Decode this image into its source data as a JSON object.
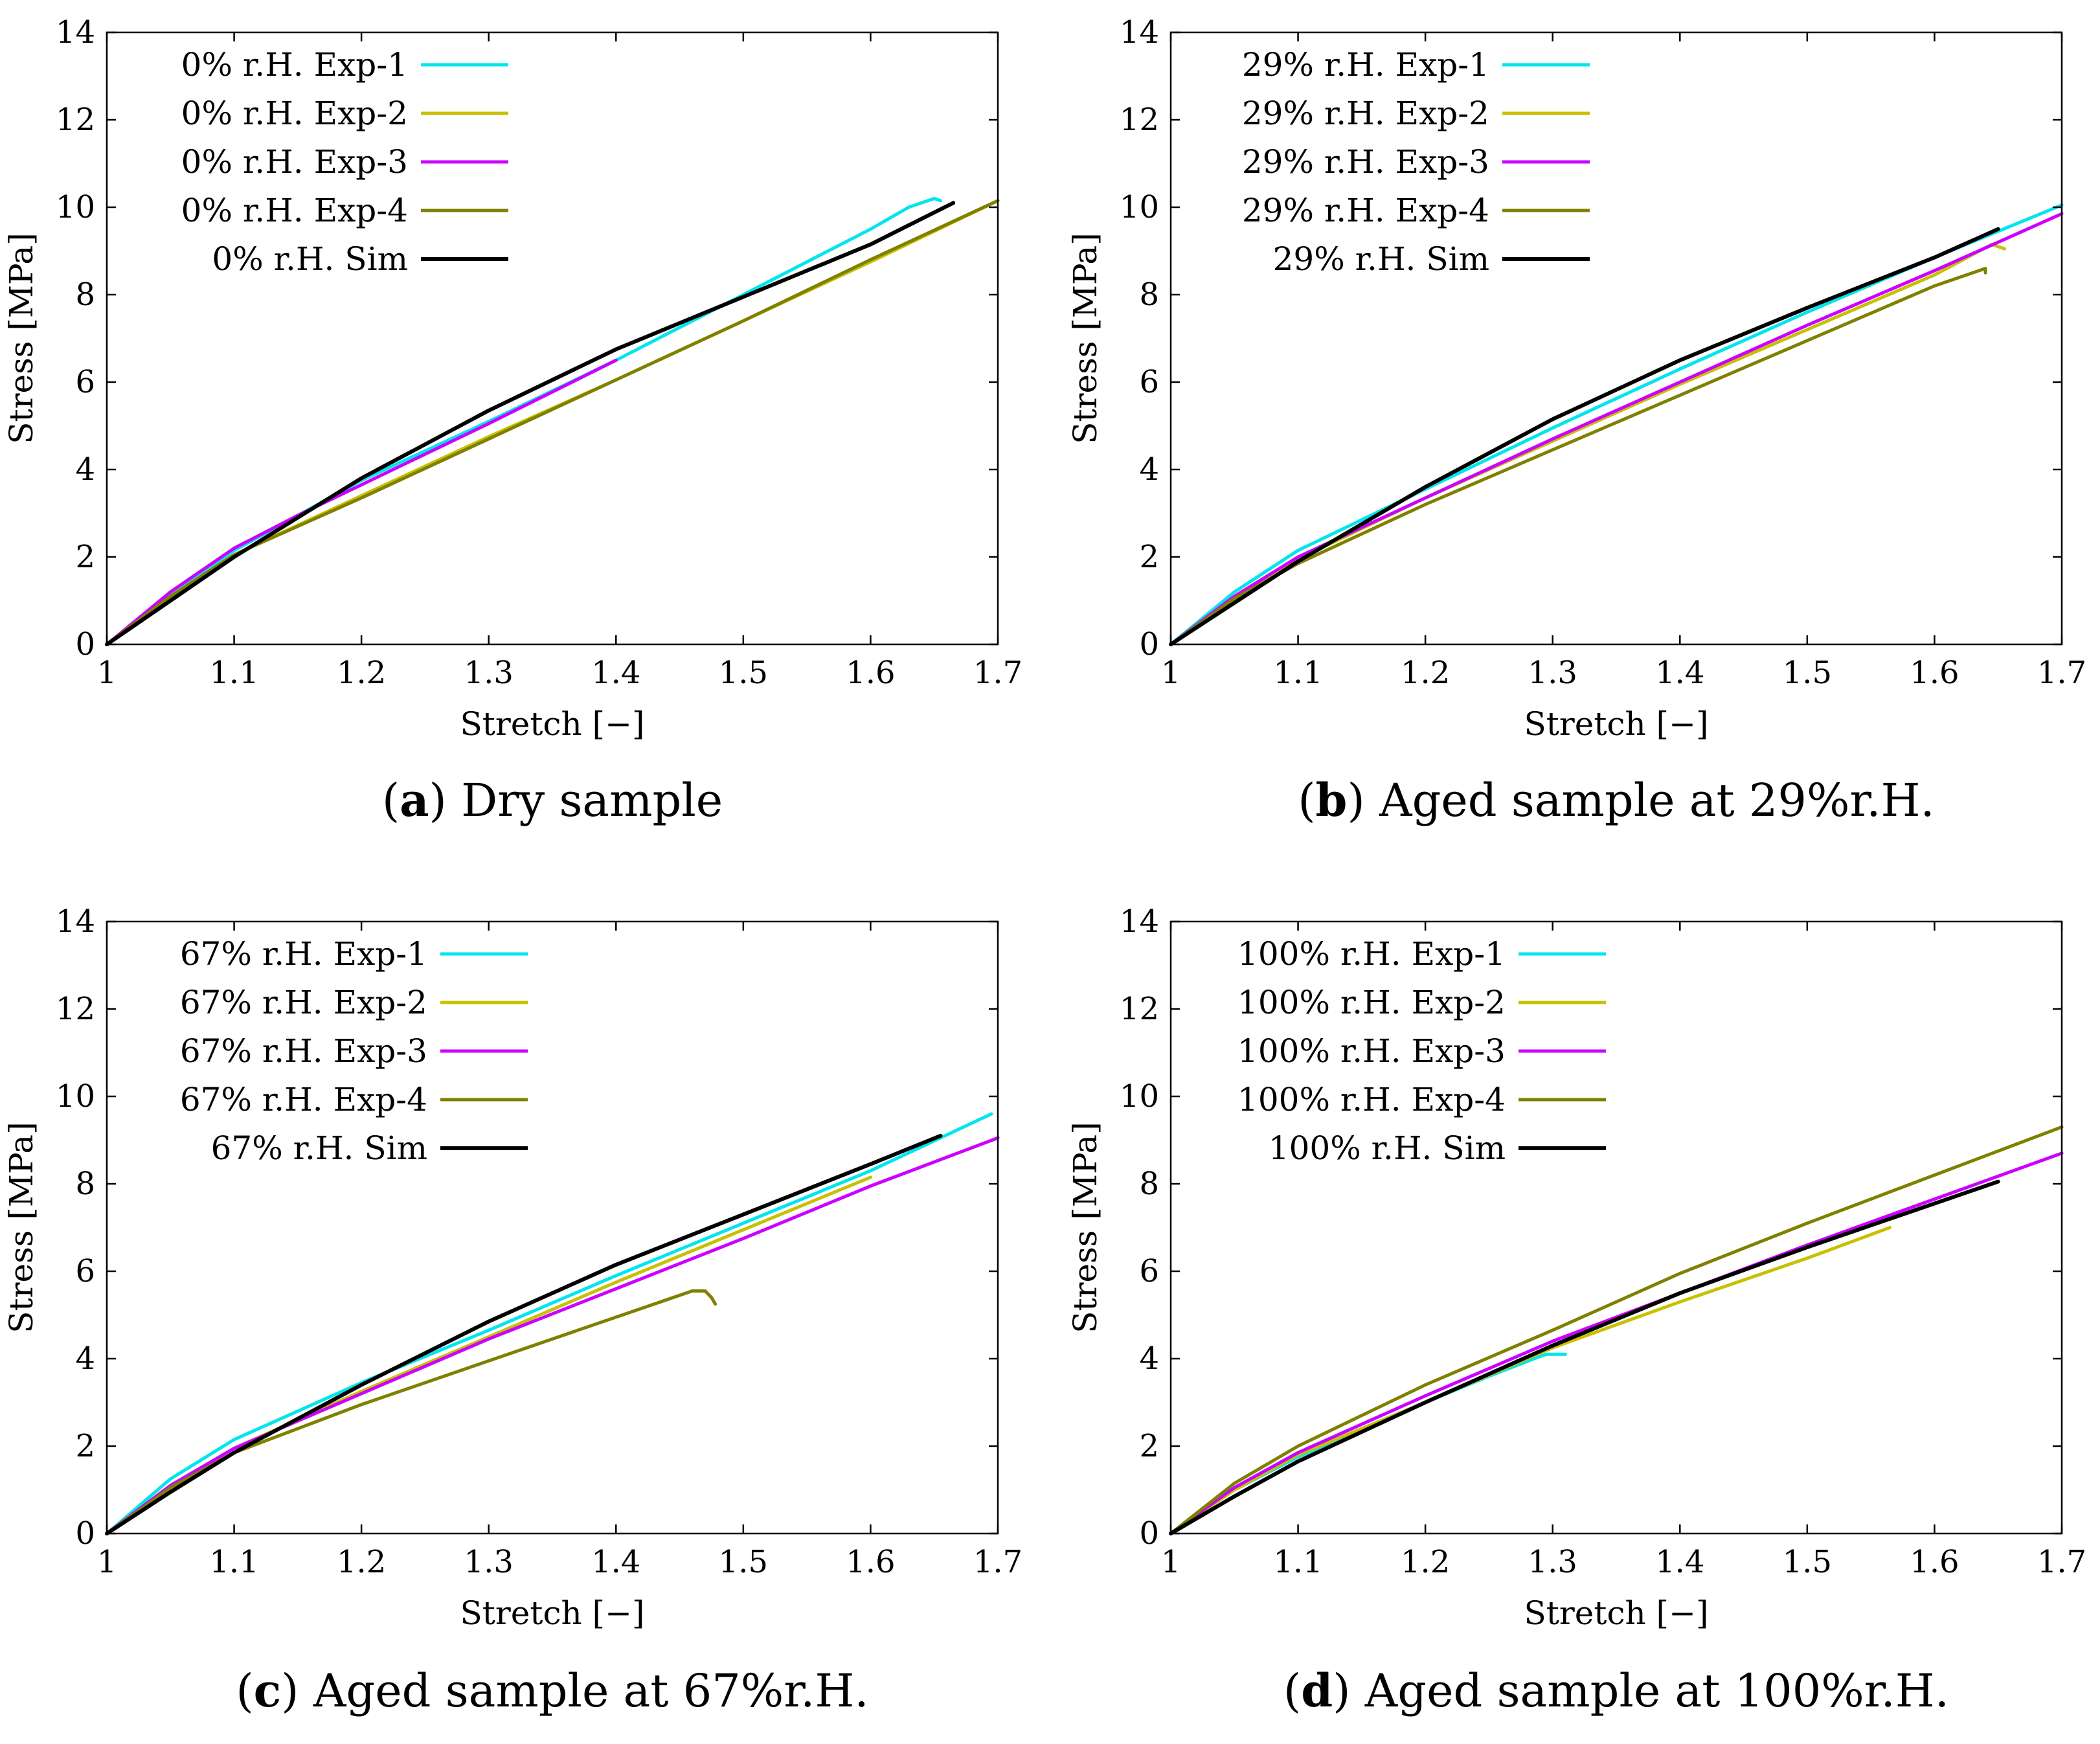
{
  "colors": {
    "exp1": "#00e5ee",
    "exp2": "#c8c000",
    "exp3": "#cc00ff",
    "exp4": "#808000",
    "sim": "#000000"
  },
  "chart_data": [
    {
      "type": "line",
      "caption_letter": "a",
      "caption_text": "Dry sample",
      "xlabel": "Stretch [−]",
      "ylabel": "Stress [MPa]",
      "xlim": [
        1,
        1.7
      ],
      "ylim": [
        0,
        14
      ],
      "xticks": [
        "1",
        "1.1",
        "1.2",
        "1.3",
        "1.4",
        "1.5",
        "1.6",
        "1.7"
      ],
      "yticks": [
        "0",
        "2",
        "4",
        "6",
        "8",
        "10",
        "12",
        "14"
      ],
      "legend_position": "top-left",
      "series": [
        {
          "name": "0% r.H. Exp-1",
          "color_key": "exp1",
          "x": [
            1,
            1.05,
            1.1,
            1.2,
            1.3,
            1.4,
            1.5,
            1.6,
            1.63,
            1.65,
            1.655
          ],
          "y": [
            0,
            1.15,
            2.15,
            3.75,
            5.1,
            6.5,
            8.0,
            9.5,
            10.0,
            10.2,
            10.15
          ]
        },
        {
          "name": "0% r.H. Exp-2",
          "color_key": "exp2",
          "x": [
            1,
            1.05,
            1.1,
            1.2,
            1.3,
            1.4,
            1.5,
            1.6,
            1.7
          ],
          "y": [
            0,
            1.1,
            2.05,
            3.4,
            4.75,
            6.05,
            7.4,
            8.75,
            10.15
          ]
        },
        {
          "name": "0% r.H. Exp-3",
          "color_key": "exp3",
          "x": [
            1,
            1.05,
            1.1,
            1.15,
            1.2,
            1.3,
            1.4
          ],
          "y": [
            0,
            1.2,
            2.2,
            2.95,
            3.65,
            5.05,
            6.5
          ]
        },
        {
          "name": "0% r.H. Exp-4",
          "color_key": "exp4",
          "x": [
            1,
            1.05,
            1.1,
            1.2,
            1.3,
            1.4,
            1.5,
            1.6,
            1.7
          ],
          "y": [
            0,
            1.1,
            2.05,
            3.35,
            4.7,
            6.05,
            7.4,
            8.8,
            10.15
          ]
        },
        {
          "name": "0% r.H. Sim",
          "color_key": "sim",
          "x": [
            1,
            1.05,
            1.1,
            1.2,
            1.3,
            1.4,
            1.5,
            1.6,
            1.665
          ],
          "y": [
            0,
            1.0,
            2.0,
            3.8,
            5.35,
            6.75,
            7.95,
            9.15,
            10.1
          ]
        }
      ]
    },
    {
      "type": "line",
      "caption_letter": "b",
      "caption_text": "Aged sample at 29%r.H.",
      "xlabel": "Stretch [−]",
      "ylabel": "Stress [MPa]",
      "xlim": [
        1,
        1.7
      ],
      "ylim": [
        0,
        14
      ],
      "xticks": [
        "1",
        "1.1",
        "1.2",
        "1.3",
        "1.4",
        "1.5",
        "1.6",
        "1.7"
      ],
      "yticks": [
        "0",
        "2",
        "4",
        "6",
        "8",
        "10",
        "12",
        "14"
      ],
      "legend_position": "top-left",
      "series": [
        {
          "name": "29% r.H. Exp-1",
          "color_key": "exp1",
          "x": [
            1,
            1.05,
            1.1,
            1.2,
            1.3,
            1.4,
            1.5,
            1.6,
            1.7
          ],
          "y": [
            0,
            1.2,
            2.15,
            3.55,
            4.95,
            6.3,
            7.6,
            8.85,
            10.05
          ]
        },
        {
          "name": "29% r.H. Exp-2",
          "color_key": "exp2",
          "x": [
            1,
            1.05,
            1.1,
            1.2,
            1.3,
            1.4,
            1.5,
            1.6,
            1.645,
            1.655
          ],
          "y": [
            0,
            1.05,
            1.95,
            3.35,
            4.65,
            5.95,
            7.2,
            8.45,
            9.15,
            9.05
          ]
        },
        {
          "name": "29% r.H. Exp-3",
          "color_key": "exp3",
          "x": [
            1,
            1.05,
            1.1,
            1.2,
            1.3,
            1.4,
            1.5,
            1.6,
            1.7
          ],
          "y": [
            0,
            1.1,
            2.0,
            3.35,
            4.7,
            6.0,
            7.3,
            8.55,
            9.85
          ]
        },
        {
          "name": "29% r.H. Exp-4",
          "color_key": "exp4",
          "x": [
            1,
            1.05,
            1.1,
            1.2,
            1.3,
            1.4,
            1.5,
            1.6,
            1.64,
            1.64
          ],
          "y": [
            0,
            1.05,
            1.85,
            3.2,
            4.45,
            5.7,
            6.95,
            8.2,
            8.6,
            8.5
          ]
        },
        {
          "name": "29% r.H. Sim",
          "color_key": "sim",
          "x": [
            1,
            1.05,
            1.1,
            1.2,
            1.3,
            1.4,
            1.5,
            1.6,
            1.65
          ],
          "y": [
            0,
            0.95,
            1.9,
            3.6,
            5.15,
            6.5,
            7.7,
            8.85,
            9.5
          ]
        }
      ]
    },
    {
      "type": "line",
      "caption_letter": "c",
      "caption_text": "Aged sample at 67%r.H.",
      "xlabel": "Stretch [−]",
      "ylabel": "Stress [MPa]",
      "xlim": [
        1,
        1.7
      ],
      "ylim": [
        0,
        14
      ],
      "xticks": [
        "1",
        "1.1",
        "1.2",
        "1.3",
        "1.4",
        "1.5",
        "1.6",
        "1.7"
      ],
      "yticks": [
        "0",
        "2",
        "4",
        "6",
        "8",
        "10",
        "12",
        "14"
      ],
      "legend_position": "top-left",
      "series": [
        {
          "name": "67% r.H. Exp-1",
          "color_key": "exp1",
          "x": [
            1,
            1.05,
            1.1,
            1.2,
            1.3,
            1.4,
            1.5,
            1.6,
            1.695
          ],
          "y": [
            0,
            1.25,
            2.15,
            3.45,
            4.65,
            5.9,
            7.1,
            8.3,
            9.6
          ]
        },
        {
          "name": "67% r.H. Exp-2",
          "color_key": "exp2",
          "x": [
            1,
            1.05,
            1.1,
            1.2,
            1.3,
            1.4,
            1.5,
            1.6
          ],
          "y": [
            0,
            1.1,
            1.95,
            3.25,
            4.5,
            5.75,
            6.95,
            8.15
          ]
        },
        {
          "name": "67% r.H. Exp-3",
          "color_key": "exp3",
          "x": [
            1,
            1.05,
            1.1,
            1.2,
            1.3,
            1.4,
            1.5,
            1.6,
            1.7
          ],
          "y": [
            0,
            1.1,
            1.95,
            3.2,
            4.45,
            5.6,
            6.75,
            7.95,
            9.05
          ]
        },
        {
          "name": "67% r.H. Exp-4",
          "color_key": "exp4",
          "x": [
            1,
            1.05,
            1.1,
            1.2,
            1.3,
            1.4,
            1.46,
            1.47,
            1.475,
            1.478
          ],
          "y": [
            0,
            1.05,
            1.85,
            2.95,
            3.95,
            4.95,
            5.55,
            5.55,
            5.4,
            5.25
          ]
        },
        {
          "name": "67% r.H. Sim",
          "color_key": "sim",
          "x": [
            1,
            1.05,
            1.1,
            1.2,
            1.3,
            1.4,
            1.5,
            1.6,
            1.655
          ],
          "y": [
            0,
            0.95,
            1.85,
            3.4,
            4.85,
            6.15,
            7.3,
            8.45,
            9.1
          ]
        }
      ]
    },
    {
      "type": "line",
      "caption_letter": "d",
      "caption_text": "Aged sample at 100%r.H.",
      "xlabel": "Stretch [−]",
      "ylabel": "Stress [MPa]",
      "xlim": [
        1,
        1.7
      ],
      "ylim": [
        0,
        14
      ],
      "xticks": [
        "1",
        "1.1",
        "1.2",
        "1.3",
        "1.4",
        "1.5",
        "1.6",
        "1.7"
      ],
      "yticks": [
        "0",
        "2",
        "4",
        "6",
        "8",
        "10",
        "12",
        "14"
      ],
      "legend_position": "top-left",
      "series": [
        {
          "name": "100% r.H. Exp-1",
          "color_key": "exp1",
          "x": [
            1,
            1.05,
            1.1,
            1.15,
            1.2,
            1.25,
            1.29,
            1.295,
            1.31
          ],
          "y": [
            0,
            1.0,
            1.75,
            2.4,
            3.0,
            3.6,
            4.05,
            4.1,
            4.1
          ]
        },
        {
          "name": "100% r.H. Exp-2",
          "color_key": "exp2",
          "x": [
            1,
            1.05,
            1.1,
            1.2,
            1.3,
            1.4,
            1.5,
            1.565
          ],
          "y": [
            0,
            1.0,
            1.8,
            3.0,
            4.25,
            5.3,
            6.3,
            7.0
          ]
        },
        {
          "name": "100% r.H. Exp-3",
          "color_key": "exp3",
          "x": [
            1,
            1.05,
            1.1,
            1.2,
            1.3,
            1.4,
            1.5,
            1.6,
            1.7
          ],
          "y": [
            0,
            1.05,
            1.85,
            3.15,
            4.4,
            5.5,
            6.6,
            7.65,
            8.7
          ]
        },
        {
          "name": "100% r.H. Exp-4",
          "color_key": "exp4",
          "x": [
            1,
            1.05,
            1.1,
            1.2,
            1.3,
            1.4,
            1.5,
            1.6,
            1.7
          ],
          "y": [
            0,
            1.15,
            2.0,
            3.4,
            4.65,
            5.95,
            7.1,
            8.2,
            9.3
          ]
        },
        {
          "name": "100% r.H. Sim",
          "color_key": "sim",
          "x": [
            1,
            1.05,
            1.1,
            1.2,
            1.3,
            1.4,
            1.5,
            1.6,
            1.65
          ],
          "y": [
            0,
            0.85,
            1.65,
            3.0,
            4.3,
            5.5,
            6.55,
            7.55,
            8.05
          ]
        }
      ]
    }
  ]
}
